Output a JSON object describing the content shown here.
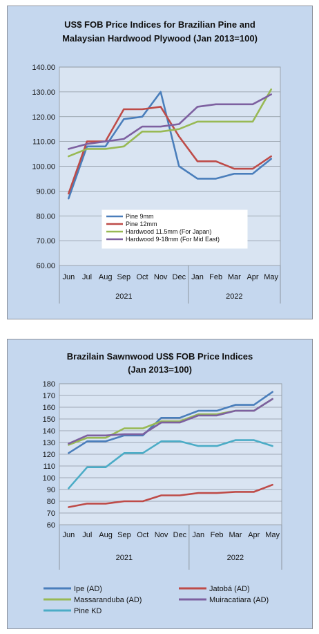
{
  "chart_data": [
    {
      "type": "line",
      "title_line1": "US$ FOB Price Indices for Brazilian Pine and",
      "title_line2": "Malaysian Hardwood Plywood (Jan 2013=100)",
      "categories": [
        "Jun",
        "Jul",
        "Aug",
        "Sep",
        "Oct",
        "Nov",
        "Dec",
        "Jan",
        "Feb",
        "Mar",
        "Apr",
        "May"
      ],
      "year_groups": [
        {
          "label": "2021",
          "count": 7
        },
        {
          "label": "2022",
          "count": 5
        }
      ],
      "y_ticks": [
        "60.00",
        "70.00",
        "80.00",
        "90.00",
        "100.00",
        "110.00",
        "120.00",
        "130.00",
        "140.00"
      ],
      "ylim": [
        60,
        140
      ],
      "series": [
        {
          "name": "Pine 9mm",
          "color": "#4a7ebb",
          "values": [
            87,
            108,
            108,
            119,
            120,
            130,
            100,
            95,
            95,
            97,
            97,
            103
          ]
        },
        {
          "name": "Pine 12mm",
          "color": "#be4b48",
          "values": [
            89,
            110,
            110,
            123,
            123,
            124,
            112,
            102,
            102,
            99,
            99,
            104
          ]
        },
        {
          "name": "Hardwood 11.5mm (For Japan)",
          "color": "#98b954",
          "values": [
            104,
            107,
            107,
            108,
            114,
            114,
            115,
            118,
            118,
            118,
            118,
            131
          ]
        },
        {
          "name": "Hardwood 9-18mm (For Mid East)",
          "color": "#7d60a0",
          "values": [
            107,
            109,
            110,
            111,
            116,
            116,
            117,
            124,
            125,
            125,
            125,
            129
          ]
        }
      ],
      "grid": "horizontal",
      "legend": "inside-bottom-center"
    },
    {
      "type": "line",
      "title_line1": "Brazilain Sawnwood US$ FOB Price Indices",
      "title_line2": "(Jan 2013=100)",
      "categories": [
        "Jun",
        "Jul",
        "Aug",
        "Sep",
        "Oct",
        "Nov",
        "Dec",
        "Jan",
        "Feb",
        "Mar",
        "Apr",
        "May"
      ],
      "year_groups": [
        {
          "label": "2021",
          "count": 7
        },
        {
          "label": "2022",
          "count": 5
        }
      ],
      "y_ticks": [
        "60",
        "70",
        "80",
        "90",
        "100",
        "110",
        "120",
        "130",
        "140",
        "150",
        "160",
        "170",
        "180"
      ],
      "ylim": [
        60,
        180
      ],
      "series": [
        {
          "name": "Ipe (AD)",
          "color": "#4a7ebb",
          "values": [
            121,
            131,
            131,
            136,
            136,
            151,
            151,
            157,
            157,
            162,
            162,
            173
          ]
        },
        {
          "name": "Jatobá (AD)",
          "color": "#be4b48",
          "values": [
            75,
            78,
            78,
            80,
            80,
            85,
            85,
            87,
            87,
            88,
            88,
            94
          ]
        },
        {
          "name": "Massaranduba (AD)",
          "color": "#98b954",
          "values": [
            128,
            134,
            134,
            142,
            142,
            148,
            148,
            154,
            154,
            157,
            157,
            167
          ]
        },
        {
          "name": "Muiracatiara (AD)",
          "color": "#7d60a0",
          "values": [
            129,
            136,
            136,
            137,
            137,
            147,
            147,
            153,
            153,
            157,
            157,
            167
          ]
        },
        {
          "name": "Pine KD",
          "color": "#4bacc6",
          "values": [
            91,
            109,
            109,
            121,
            121,
            131,
            131,
            127,
            127,
            132,
            132,
            127
          ]
        }
      ],
      "grid": "horizontal",
      "legend": "bottom"
    }
  ]
}
